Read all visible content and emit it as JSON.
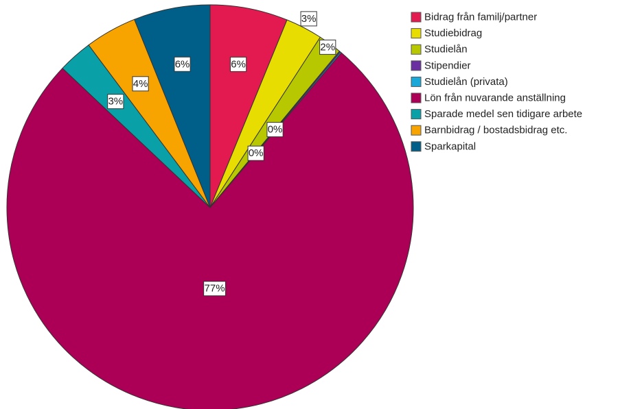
{
  "chart_data": {
    "type": "pie",
    "title": "",
    "legend_position": "top-right",
    "start_angle_deg": 0,
    "direction": "clockwise",
    "slices": [
      {
        "name": "Bidrag från familj/partner",
        "value": 6.3,
        "label": "6%",
        "color": "#e31a4f"
      },
      {
        "name": "Studiebidrag",
        "value": 3.0,
        "label": "3%",
        "color": "#e8dd00"
      },
      {
        "name": "Studielån",
        "value": 1.9,
        "label": "2%",
        "color": "#b8c800"
      },
      {
        "name": "Stipendier",
        "value": 0.1,
        "label": "0%",
        "color": "#6a2fa0"
      },
      {
        "name": "Studielån (privata)",
        "value": 0.1,
        "label": "0%",
        "color": "#19a8d8"
      },
      {
        "name": "Lön från nuvarande anställning",
        "value": 77.4,
        "label": "77%",
        "color": "#ab0055"
      },
      {
        "name": "Sparade medel sen tidigare arbete",
        "value": 2.8,
        "label": "3%",
        "color": "#0aa0a8"
      },
      {
        "name": "Barnbidrag / bostadsbidrag etc.",
        "value": 4.2,
        "label": "4%",
        "color": "#f7a400"
      },
      {
        "name": "Sparkapital",
        "value": 6.2,
        "label": "6%",
        "color": "#005f88"
      }
    ]
  }
}
